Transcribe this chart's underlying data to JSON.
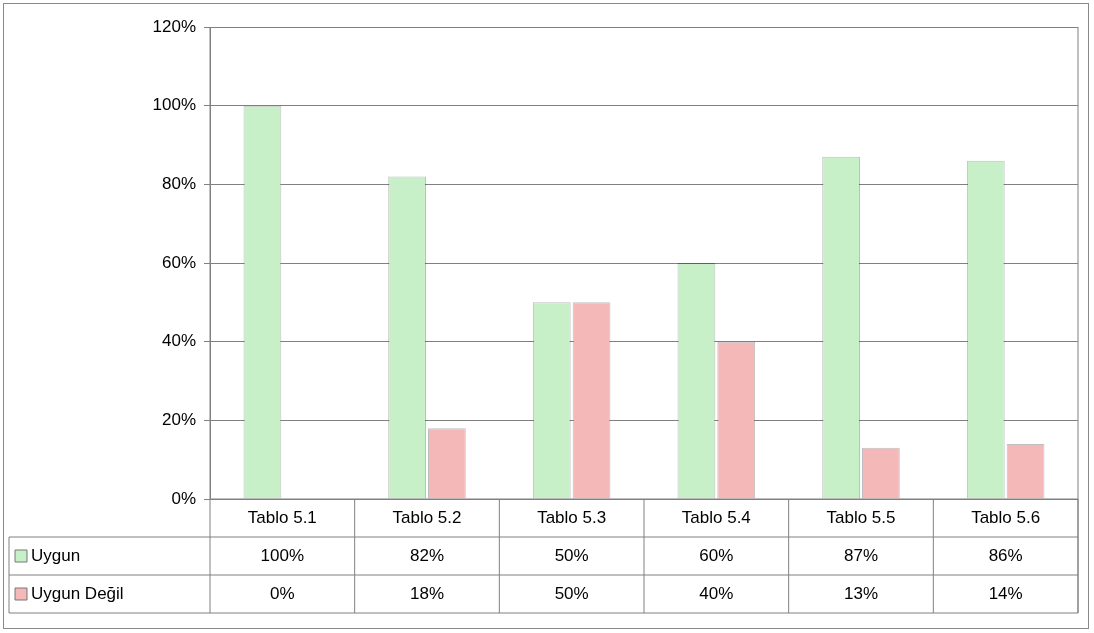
{
  "chart_data": {
    "type": "bar",
    "categories": [
      "Tablo 5.1",
      "Tablo 5.2",
      "Tablo 5.3",
      "Tablo 5.4",
      "Tablo 5.5",
      "Tablo 5.6"
    ],
    "series": [
      {
        "name": "Uygun",
        "color": "#c8f0c8",
        "values": [
          100,
          82,
          50,
          60,
          87,
          86
        ],
        "value_labels": [
          "100%",
          "82%",
          "50%",
          "60%",
          "87%",
          "86%"
        ]
      },
      {
        "name": "Uygun Değil",
        "color": "#f5b8b8",
        "values": [
          0,
          18,
          50,
          40,
          13,
          14
        ],
        "value_labels": [
          "0%",
          "18%",
          "50%",
          "40%",
          "13%",
          "14%"
        ]
      }
    ],
    "ylim": [
      0,
      120
    ],
    "yticks": [
      {
        "value": 0,
        "label": "0%"
      },
      {
        "value": 20,
        "label": "20%"
      },
      {
        "value": 40,
        "label": "40%"
      },
      {
        "value": 60,
        "label": "60%"
      },
      {
        "value": 80,
        "label": "80%"
      },
      {
        "value": 100,
        "label": "100%"
      },
      {
        "value": 120,
        "label": "120%"
      }
    ],
    "grid": "y",
    "legend": "bottom left"
  }
}
